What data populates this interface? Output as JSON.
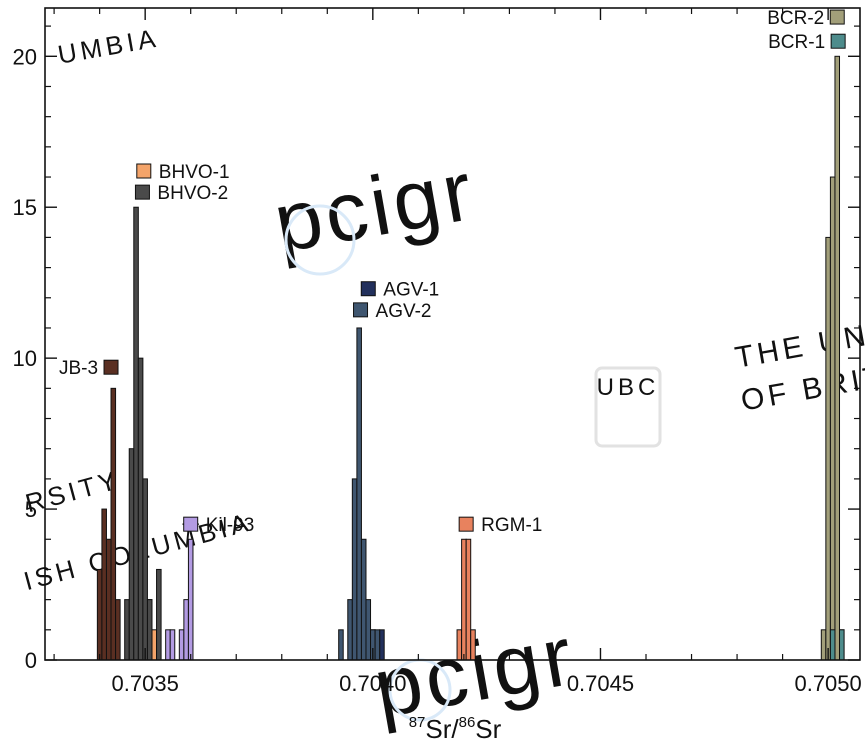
{
  "chart_data": {
    "type": "bar",
    "subtype": "histogram",
    "title": "",
    "xlabel": {
      "isotope_a_mass": "87",
      "isotope_a": "Sr",
      "separator": "/",
      "isotope_b_mass": "86",
      "isotope_b": "Sr"
    },
    "ylabel": "",
    "xlim": [
      0.70328,
      0.70507
    ],
    "ylim": [
      0,
      21.6
    ],
    "x_ticks": [
      {
        "value": 0.7035,
        "label": "0.7035"
      },
      {
        "value": 0.704,
        "label": "0.7040"
      },
      {
        "value": 0.7045,
        "label": "0.7045"
      },
      {
        "value": 0.705,
        "label": "0.7050"
      }
    ],
    "y_ticks": [
      {
        "value": 0,
        "label": "0"
      },
      {
        "value": 5,
        "label": "5"
      },
      {
        "value": 10,
        "label": "10"
      },
      {
        "value": 15,
        "label": "15"
      },
      {
        "value": 20,
        "label": "20"
      }
    ],
    "grid": false,
    "bin_width": 1e-05,
    "series": [
      {
        "name": "JB-3",
        "color": "#5a2f22",
        "bins": [
          [
            0.7034,
            3
          ],
          [
            0.70341,
            5
          ],
          [
            0.70342,
            4
          ],
          [
            0.70343,
            9
          ],
          [
            0.70344,
            2
          ]
        ],
        "reference": {
          "x": 0.703425,
          "y": 9.7,
          "err": 1.2e-05
        }
      },
      {
        "name": "BHVO-1",
        "color": "#f4a46a",
        "bins": [
          [
            0.70349,
            1
          ],
          [
            0.7035,
            2
          ],
          [
            0.70351,
            2
          ],
          [
            0.70352,
            1
          ]
        ],
        "reference": {
          "x": 0.703497,
          "y": 16.2,
          "err": 0
        }
      },
      {
        "name": "BHVO-2",
        "color": "#4a4a4a",
        "bins": [
          [
            0.70346,
            2
          ],
          [
            0.70347,
            7
          ],
          [
            0.70348,
            15
          ],
          [
            0.70349,
            10
          ],
          [
            0.7035,
            6
          ],
          [
            0.70351,
            2
          ],
          [
            0.70353,
            3
          ]
        ],
        "reference": {
          "x": 0.703494,
          "y": 15.5,
          "err": 0
        }
      },
      {
        "name": "Kil-93",
        "color": "#b39be3",
        "bins": [
          [
            0.70355,
            1
          ],
          [
            0.70356,
            1
          ],
          [
            0.70358,
            1
          ],
          [
            0.70359,
            2
          ],
          [
            0.7036,
            4
          ]
        ],
        "reference": {
          "x": 0.7036,
          "y": 4.5,
          "err": 1.8e-05
        }
      },
      {
        "name": "AGV-1",
        "color": "#22305c",
        "bins": [
          [
            0.70396,
            1
          ],
          [
            0.70398,
            1
          ],
          [
            0.704,
            1
          ],
          [
            0.70402,
            1
          ]
        ],
        "reference": {
          "x": 0.70399,
          "y": 12.3,
          "err": 0
        }
      },
      {
        "name": "AGV-2",
        "color": "#3f5670",
        "bins": [
          [
            0.70393,
            1
          ],
          [
            0.70395,
            2
          ],
          [
            0.70396,
            6
          ],
          [
            0.70397,
            11
          ],
          [
            0.70398,
            4
          ],
          [
            0.70399,
            2
          ],
          [
            0.704,
            1
          ],
          [
            0.70401,
            1
          ]
        ],
        "reference": {
          "x": 0.703973,
          "y": 11.6,
          "err": 8e-06
        }
      },
      {
        "name": "RGM-1",
        "color": "#e8825e",
        "bins": [
          [
            0.70419,
            1
          ],
          [
            0.7042,
            4
          ],
          [
            0.70421,
            4
          ],
          [
            0.70422,
            1
          ]
        ],
        "reference": {
          "x": 0.704205,
          "y": 4.5,
          "err": 0
        }
      },
      {
        "name": "BCR-2",
        "color": "#a29f7a",
        "bins": [
          [
            0.70499,
            1
          ],
          [
            0.705,
            14
          ],
          [
            0.70501,
            16
          ],
          [
            0.70502,
            20
          ],
          [
            0.70503,
            1
          ]
        ],
        "reference": {
          "x": 0.70502,
          "y": 21.3,
          "err": 0
        }
      },
      {
        "name": "BCR-1",
        "color": "#4e8c8c",
        "bins": [
          [
            0.70501,
            1
          ],
          [
            0.70503,
            1
          ]
        ],
        "reference": {
          "x": 0.705022,
          "y": 20.5,
          "err": 0
        }
      }
    ],
    "labels": [
      {
        "text": "BCR-2",
        "x": 0.70502,
        "y": 21.3,
        "side": "left"
      },
      {
        "text": "BCR-1",
        "x": 0.705022,
        "y": 20.5,
        "side": "left"
      },
      {
        "text": "BHVO-1",
        "x": 0.703497,
        "y": 16.2,
        "side": "right"
      },
      {
        "text": "BHVO-2",
        "x": 0.703494,
        "y": 15.5,
        "side": "right"
      },
      {
        "text": "AGV-1",
        "x": 0.70399,
        "y": 12.3,
        "side": "right"
      },
      {
        "text": "AGV-2",
        "x": 0.703973,
        "y": 11.6,
        "side": "right"
      },
      {
        "text": "JB-3",
        "x": 0.703425,
        "y": 9.7,
        "side": "left"
      },
      {
        "text": "Kil-93",
        "x": 0.7036,
        "y": 4.5,
        "side": "right"
      },
      {
        "text": "RGM-1",
        "x": 0.704205,
        "y": 4.5,
        "side": "right"
      }
    ]
  },
  "watermarks": [
    {
      "text": "pcigr"
    },
    {
      "text": "pcigr"
    },
    {
      "text": "UBC"
    },
    {
      "text": "THE UNI"
    },
    {
      "text": "OF BRIT"
    },
    {
      "text": "UMBIA"
    },
    {
      "text": "RSITY"
    },
    {
      "text": "ISH COLUMBIA"
    }
  ]
}
